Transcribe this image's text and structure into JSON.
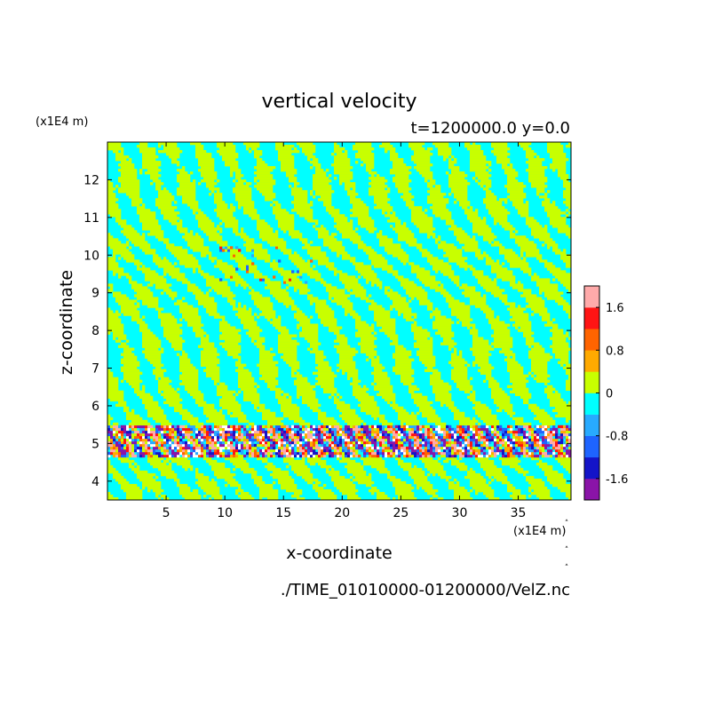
{
  "chart_data": {
    "type": "heatmap",
    "title": "vertical velocity",
    "subtitle": "t=1200000.0 y=0.0",
    "xlabel": "x-coordinate",
    "ylabel": "z-coordinate",
    "x_unit": "(x1E4 m)",
    "y_unit": "(x1E4 m)",
    "xlim": [
      0.0,
      39.5
    ],
    "ylim": [
      3.5,
      13.0
    ],
    "x_ticks": [
      5,
      10,
      15,
      20,
      25,
      30,
      35
    ],
    "y_ticks": [
      4,
      5,
      6,
      7,
      8,
      9,
      10,
      11,
      12
    ],
    "colorbar": {
      "levels": [
        -2.0,
        -1.6,
        -1.2,
        -0.8,
        -0.4,
        0.0,
        0.4,
        0.8,
        1.2,
        1.6,
        2.0
      ],
      "tick_values": [
        -1.6,
        -0.8,
        0,
        0.8,
        1.6
      ],
      "tick_labels": [
        "-1.6",
        "-0.8",
        "0",
        "0.8",
        "1.6"
      ],
      "colors": [
        "#8a14a8",
        "#1414c8",
        "#1e64ff",
        "#28aaff",
        "#00ffff",
        "#c8ff00",
        "#ffaa00",
        "#ff6400",
        "#ff1414",
        "#ffaaaa"
      ]
    },
    "dominant_colors": {
      "negative_small": "#00ffff",
      "positive_small": "#c8ff00"
    },
    "features": [
      {
        "description": "strong oscillating band",
        "z_range": [
          4.7,
          5.4
        ]
      },
      {
        "description": "small disturbance",
        "x_range": [
          9.5,
          17.5
        ],
        "z_range": [
          9.3,
          10.2
        ]
      }
    ],
    "source_file": "./TIME_01010000-01200000/VelZ.nc"
  }
}
